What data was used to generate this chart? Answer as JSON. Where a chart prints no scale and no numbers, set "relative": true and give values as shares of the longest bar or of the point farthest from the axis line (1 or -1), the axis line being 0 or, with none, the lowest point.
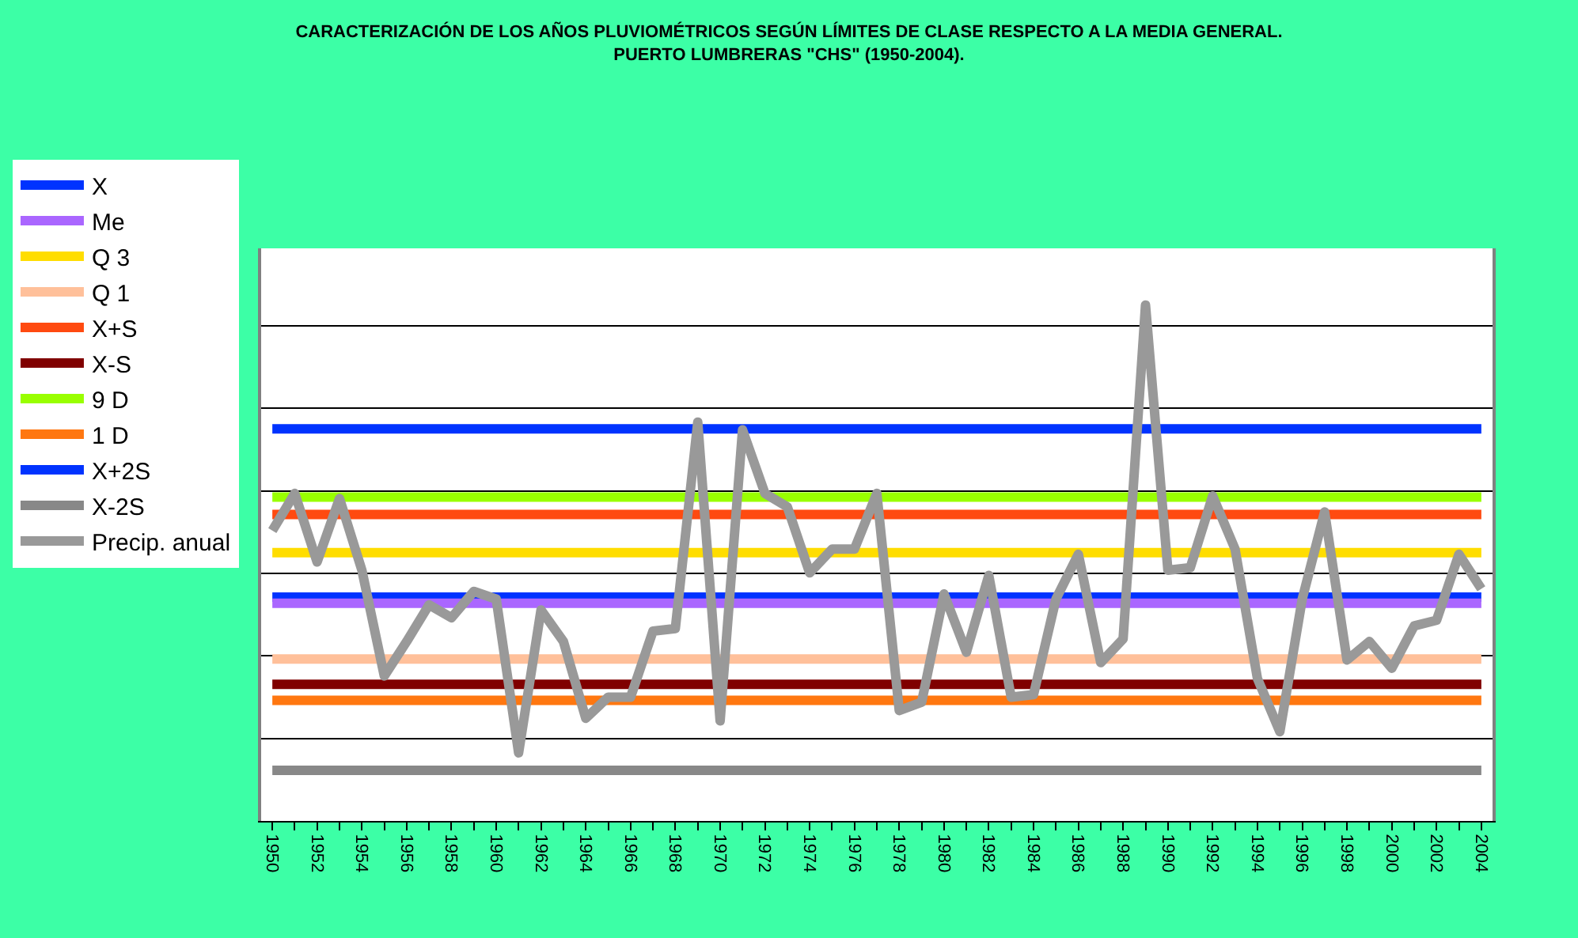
{
  "chart_data": {
    "type": "line",
    "title": "CARACTERIZACIÓN DE LOS AÑOS PLUVIOMÉTRICOS SEGÚN LÍMITES DE CLASE RESPECTO A LA MEDIA GENERAL.\nPUERTO LUMBRERAS \"CHS\" (1950-2004).",
    "relative": true,
    "legend": "left",
    "grid": "y",
    "marker": "none",
    "line_style": "solid",
    "xlim": [
      1949.5,
      2004.5
    ],
    "xticks": [
      1950,
      1952,
      1954,
      1956,
      1958,
      1960,
      1962,
      1964,
      1966,
      1968,
      1970,
      1972,
      1974,
      1976,
      1978,
      1980,
      1982,
      1984,
      1986,
      1988,
      1990,
      1992,
      1994,
      1996,
      1998,
      2000,
      2002,
      2004
    ],
    "series": [
      {
        "name": "X",
        "color": "#0033ff",
        "x": [
          1950,
          2004
        ],
        "values": [
          0.434,
          0.434
        ]
      },
      {
        "name": "Me",
        "color": "#aa66ff",
        "x": [
          1950,
          2004
        ],
        "values": [
          0.422,
          0.422
        ]
      },
      {
        "name": "Q 3",
        "color": "#ffdd00",
        "x": [
          1950,
          2004
        ],
        "values": [
          0.52,
          0.52
        ]
      },
      {
        "name": "Q 1",
        "color": "#ffc09a",
        "x": [
          1950,
          2004
        ],
        "values": [
          0.314,
          0.314
        ]
      },
      {
        "name": "X+S",
        "color": "#ff4a10",
        "x": [
          1950,
          2004
        ],
        "values": [
          0.594,
          0.594
        ]
      },
      {
        "name": "X-S",
        "color": "#800000",
        "x": [
          1950,
          2004
        ],
        "values": [
          0.265,
          0.265
        ]
      },
      {
        "name": "9 D",
        "color": "#99ff00",
        "x": [
          1950,
          2004
        ],
        "values": [
          0.628,
          0.628
        ]
      },
      {
        "name": "1 D",
        "color": "#ff7710",
        "x": [
          1950,
          2004
        ],
        "values": [
          0.234,
          0.234
        ]
      },
      {
        "name": "X+2S",
        "color": "#0033ff",
        "x": [
          1950,
          2004
        ],
        "values": [
          0.76,
          0.76
        ]
      },
      {
        "name": "X-2S",
        "color": "#888888",
        "x": [
          1950,
          2004
        ],
        "values": [
          0.098,
          0.098
        ]
      },
      {
        "name": "Precip. anual",
        "color": "#999999",
        "x": [
          1950,
          1951,
          1952,
          1953,
          1954,
          1955,
          1956,
          1957,
          1958,
          1959,
          1960,
          1961,
          1962,
          1963,
          1964,
          1965,
          1966,
          1967,
          1968,
          1969,
          1970,
          1971,
          1972,
          1973,
          1974,
          1975,
          1976,
          1977,
          1978,
          1979,
          1980,
          1981,
          1982,
          1983,
          1984,
          1985,
          1986,
          1987,
          1988,
          1989,
          1990,
          1991,
          1992,
          1993,
          1994,
          1995,
          1996,
          1997,
          1998,
          1999,
          2000,
          2001,
          2002,
          2003,
          2004
        ],
        "values": [
          0.563,
          0.635,
          0.502,
          0.625,
          0.486,
          0.281,
          0.348,
          0.419,
          0.394,
          0.445,
          0.43,
          0.132,
          0.409,
          0.348,
          0.199,
          0.24,
          0.24,
          0.368,
          0.373,
          0.773,
          0.194,
          0.758,
          0.635,
          0.609,
          0.481,
          0.527,
          0.527,
          0.635,
          0.214,
          0.23,
          0.44,
          0.327,
          0.476,
          0.24,
          0.245,
          0.43,
          0.517,
          0.307,
          0.353,
          1.0,
          0.486,
          0.491,
          0.63,
          0.527,
          0.276,
          0.173,
          0.43,
          0.599,
          0.312,
          0.348,
          0.296,
          0.378,
          0.389,
          0.517,
          0.45
        ]
      }
    ]
  }
}
